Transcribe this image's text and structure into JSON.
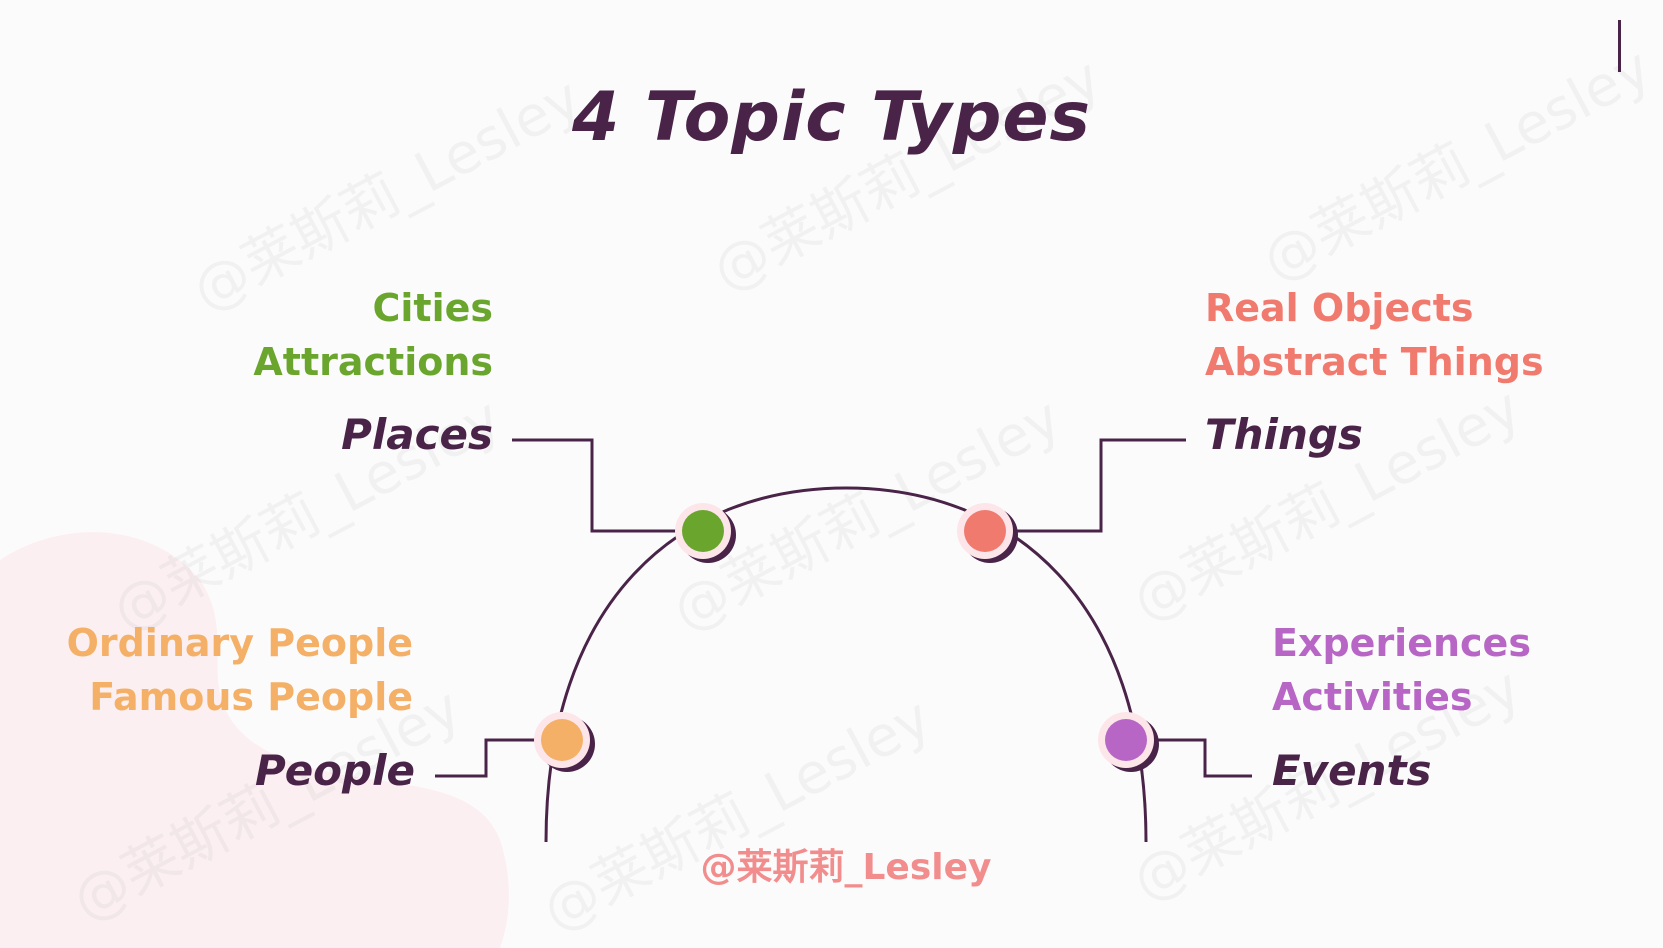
{
  "title": "4 Topic Types",
  "watermark": "@莱斯莉_Lesley",
  "handle": "@莱斯莉_Lesley",
  "topics": {
    "places": {
      "label": "Places",
      "items": [
        "Cities",
        "Attractions"
      ],
      "color": "#6aa62e"
    },
    "things": {
      "label": "Things",
      "items": [
        "Real Objects",
        "Abstract Things"
      ],
      "color": "#f07a6e"
    },
    "people": {
      "label": "People",
      "items": [
        "Ordinary People",
        "Famous People"
      ],
      "color": "#f5b067"
    },
    "events": {
      "label": "Events",
      "items": [
        "Experiences",
        "Activities"
      ],
      "color": "#b866c6"
    }
  },
  "colors": {
    "dark": "#4a2448",
    "background": "#fcfbfc",
    "blob": "#fbeff1"
  }
}
